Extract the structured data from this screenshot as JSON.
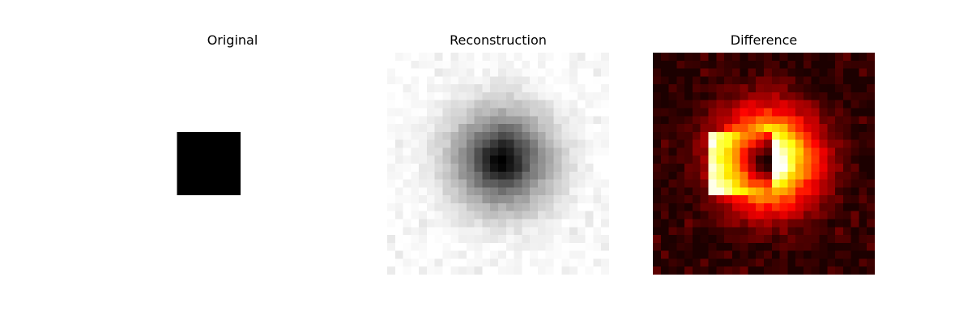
{
  "figure": {
    "panels": [
      {
        "id": "original",
        "title": "Original",
        "colormap": "gray"
      },
      {
        "id": "reconstruction",
        "title": "Reconstruction",
        "colormap": "gray"
      },
      {
        "id": "difference",
        "title": "Difference",
        "colormap": "hot"
      }
    ],
    "grid_size": 28,
    "square": {
      "row_start": 10,
      "row_end": 18,
      "col_start": 7,
      "col_end": 15
    }
  }
}
